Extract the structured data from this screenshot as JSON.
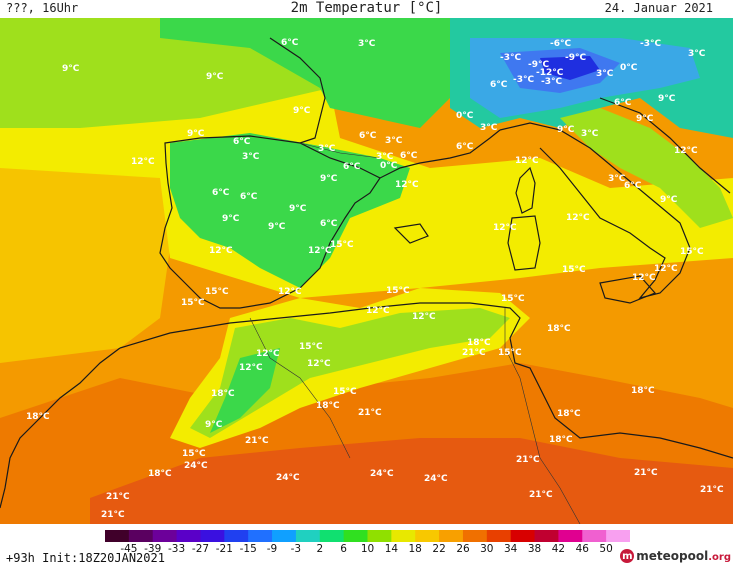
{
  "header": {
    "left": "???, 16Uhr",
    "title": "2m Temperatur [°C]",
    "date": "24. Januar 2021"
  },
  "footer": {
    "run_info": "+93h Init:18Z20JAN2021",
    "logo_brand": "meteopool",
    "logo_tld": ".org"
  },
  "scale": {
    "ticks": [
      "-45",
      "-39",
      "-33",
      "-27",
      "-21",
      "-15",
      "-9",
      "-3",
      "2",
      "6",
      "10",
      "14",
      "18",
      "22",
      "26",
      "30",
      "34",
      "38",
      "42",
      "46",
      "50"
    ],
    "colors": [
      "#40002a",
      "#5a0060",
      "#6c009a",
      "#5a00c8",
      "#3a10e0",
      "#2040f0",
      "#2070ff",
      "#10a0ff",
      "#20d0c0",
      "#10e070",
      "#30e020",
      "#90e000",
      "#e8e800",
      "#f8c800",
      "#f8a000",
      "#f07000",
      "#e84000",
      "#d80000",
      "#c00030",
      "#e00090",
      "#f060d0",
      "#f8a0f0"
    ]
  },
  "colors": {
    "very_cold": "#1f2fe0",
    "cold": "#3f78f0",
    "cool_blue": "#3aa8e6",
    "teal": "#23c9a0",
    "green": "#3bd84a",
    "yellow_green": "#9fe01c",
    "yellow": "#f3ec00",
    "light_orange": "#f6c400",
    "orange": "#f49a00",
    "dark_orange": "#ee7a00",
    "red_orange": "#e65a10"
  },
  "labels": [
    {
      "t": "9°C"
    },
    {
      "t": "9°C"
    },
    {
      "t": "6°C"
    },
    {
      "t": "3°C"
    },
    {
      "t": "9°C"
    },
    {
      "t": "9°C"
    },
    {
      "t": "12°C"
    },
    {
      "t": "6°C"
    },
    {
      "t": "3°C"
    },
    {
      "t": "6°C"
    },
    {
      "t": "3°C"
    },
    {
      "t": "3°C"
    },
    {
      "t": "6°C"
    },
    {
      "t": "3°C"
    },
    {
      "t": "6°C"
    },
    {
      "t": "0°C"
    },
    {
      "t": "9°C"
    },
    {
      "t": "12°C"
    },
    {
      "t": "6°C"
    },
    {
      "t": "6°C"
    },
    {
      "t": "9°C"
    },
    {
      "t": "9°C"
    },
    {
      "t": "6°C"
    },
    {
      "t": "12°C"
    },
    {
      "t": "9°C"
    },
    {
      "t": "15°C"
    },
    {
      "t": "12°C"
    },
    {
      "t": "15°C"
    },
    {
      "t": "15°C"
    },
    {
      "t": "12°C"
    },
    {
      "t": "15°C"
    },
    {
      "t": "-6°C"
    },
    {
      "t": "-3°C"
    },
    {
      "t": "-9°C"
    },
    {
      "t": "-9°C"
    },
    {
      "t": "-12°C"
    },
    {
      "t": "-3°C"
    },
    {
      "t": "-3°C"
    },
    {
      "t": "-3°C"
    },
    {
      "t": "6°C"
    },
    {
      "t": "0°C"
    },
    {
      "t": "3°C"
    },
    {
      "t": "0°C"
    },
    {
      "t": "3°C"
    },
    {
      "t": "3°C"
    },
    {
      "t": "6°C"
    },
    {
      "t": "6°C"
    },
    {
      "t": "9°C"
    },
    {
      "t": "9°C"
    },
    {
      "t": "3°C"
    },
    {
      "t": "9°C"
    },
    {
      "t": "12°C"
    },
    {
      "t": "12°C"
    },
    {
      "t": "3°C"
    },
    {
      "t": "6°C"
    },
    {
      "t": "9°C"
    },
    {
      "t": "12°C"
    },
    {
      "t": "12°C"
    },
    {
      "t": "15°C"
    },
    {
      "t": "15°C"
    },
    {
      "t": "12°C"
    },
    {
      "t": "12°C"
    },
    {
      "t": "15°C"
    },
    {
      "t": "12°C"
    },
    {
      "t": "15°C"
    },
    {
      "t": "12°C"
    },
    {
      "t": "12°C"
    },
    {
      "t": "12°C"
    },
    {
      "t": "18°C"
    },
    {
      "t": "15°C"
    },
    {
      "t": "21°C"
    },
    {
      "t": "18°C"
    },
    {
      "t": "18°C"
    },
    {
      "t": "18°C"
    },
    {
      "t": "15°C"
    },
    {
      "t": "12°C"
    },
    {
      "t": "18°C"
    },
    {
      "t": "9°C"
    },
    {
      "t": "21°C"
    },
    {
      "t": "21°C"
    },
    {
      "t": "18°C"
    },
    {
      "t": "18°C"
    },
    {
      "t": "15°C"
    },
    {
      "t": "24°C"
    },
    {
      "t": "18°C"
    },
    {
      "t": "21°C"
    },
    {
      "t": "24°C"
    },
    {
      "t": "24°C"
    },
    {
      "t": "24°C"
    },
    {
      "t": "21°C"
    },
    {
      "t": "21°C"
    },
    {
      "t": "18°C"
    },
    {
      "t": "21°C"
    },
    {
      "t": "21°C"
    },
    {
      "t": "21°C"
    }
  ]
}
